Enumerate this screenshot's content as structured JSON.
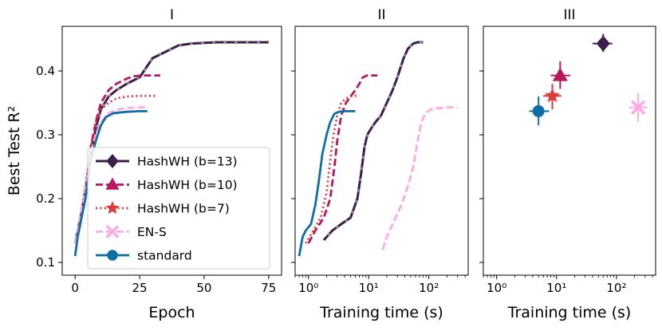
{
  "chart_data": [
    {
      "panel": "I",
      "type": "line",
      "title": "I",
      "xlabel": "Epoch",
      "ylabel": "Best Test R²",
      "xlim": [
        -5,
        80
      ],
      "ylim": [
        0.08,
        0.47
      ],
      "xscale": "linear",
      "xticks": [
        0,
        25,
        50,
        75
      ],
      "yticks": [
        0.1,
        0.2,
        0.3,
        0.4
      ],
      "legend_position": "lower-right",
      "series": [
        {
          "name": "HashWH (b=13)",
          "color": "#3b1f4a",
          "style": "dashdot",
          "x": [
            0,
            1,
            2,
            4,
            6,
            8,
            10,
            13,
            16,
            20,
            25,
            30,
            35,
            40,
            45,
            50,
            55,
            60,
            65,
            70,
            75
          ],
          "y": [
            0.13,
            0.15,
            0.17,
            0.21,
            0.27,
            0.31,
            0.34,
            0.36,
            0.37,
            0.38,
            0.39,
            0.42,
            0.43,
            0.44,
            0.443,
            0.444,
            0.445,
            0.445,
            0.445,
            0.445,
            0.445
          ]
        },
        {
          "name": "HashWH (b=10)",
          "color": "#b5185e",
          "style": "dashed",
          "x": [
            0,
            1,
            2,
            4,
            6,
            8,
            10,
            13,
            16,
            20,
            23,
            26,
            30,
            33
          ],
          "y": [
            0.13,
            0.15,
            0.17,
            0.21,
            0.28,
            0.32,
            0.35,
            0.37,
            0.38,
            0.388,
            0.392,
            0.393,
            0.393,
            0.393
          ]
        },
        {
          "name": "HashWH (b=7)",
          "color": "#e03b3b",
          "style": "dotted",
          "x": [
            0,
            1,
            2,
            4,
            6,
            8,
            10,
            13,
            16,
            20,
            25,
            31
          ],
          "y": [
            0.13,
            0.15,
            0.17,
            0.22,
            0.28,
            0.32,
            0.34,
            0.35,
            0.357,
            0.36,
            0.361,
            0.361
          ]
        },
        {
          "name": "EN-S",
          "color": "#ffa9e0",
          "style": "dashed",
          "x": [
            0,
            1,
            2,
            4,
            6,
            8,
            10,
            13,
            16,
            20,
            25,
            28
          ],
          "y": [
            0.13,
            0.15,
            0.17,
            0.21,
            0.27,
            0.3,
            0.32,
            0.334,
            0.339,
            0.342,
            0.343,
            0.343
          ]
        },
        {
          "name": "standard",
          "color": "#0b6fa6",
          "style": "solid",
          "x": [
            0,
            1,
            2,
            4,
            6,
            8,
            10,
            12,
            15,
            20,
            25,
            28
          ],
          "y": [
            0.11,
            0.14,
            0.16,
            0.2,
            0.26,
            0.29,
            0.315,
            0.328,
            0.334,
            0.336,
            0.337,
            0.337
          ]
        }
      ]
    },
    {
      "panel": "II",
      "type": "line",
      "title": "II",
      "xlabel": "Training time (s)",
      "xlim": [
        0.6,
        450
      ],
      "ylim": [
        0.08,
        0.47
      ],
      "xscale": "log",
      "xticks": [
        1,
        10,
        100
      ],
      "xtick_labels": [
        "10⁰",
        "10¹",
        "10²"
      ],
      "series": [
        {
          "name": "HashWH (b=13)",
          "color": "#3b1f4a",
          "style": "dashdot",
          "x": [
            1.8,
            2.5,
            3.5,
            5,
            6.5,
            7.5,
            8.5,
            9.5,
            11,
            13,
            16,
            20,
            25,
            30,
            38,
            45,
            55,
            65,
            80
          ],
          "y": [
            0.135,
            0.15,
            0.16,
            0.17,
            0.2,
            0.24,
            0.28,
            0.3,
            0.31,
            0.32,
            0.33,
            0.35,
            0.37,
            0.39,
            0.42,
            0.435,
            0.443,
            0.445,
            0.445
          ]
        },
        {
          "name": "HashWH (b=10)",
          "color": "#b5185e",
          "style": "dashed",
          "x": [
            1.0,
            1.3,
            1.8,
            2.3,
            2.7,
            3.0,
            3.5,
            4.2,
            5,
            6,
            7,
            8,
            9.5,
            11,
            14
          ],
          "y": [
            0.13,
            0.15,
            0.17,
            0.2,
            0.25,
            0.29,
            0.33,
            0.35,
            0.36,
            0.37,
            0.38,
            0.39,
            0.393,
            0.393,
            0.393
          ]
        },
        {
          "name": "HashWH (b=7)",
          "color": "#e03b3b",
          "style": "dotted",
          "x": [
            0.9,
            1.2,
            1.6,
            2.0,
            2.3,
            2.6,
            3.0,
            3.5,
            4.2,
            5,
            6,
            7
          ],
          "y": [
            0.13,
            0.15,
            0.17,
            0.21,
            0.26,
            0.3,
            0.33,
            0.35,
            0.357,
            0.36,
            0.361,
            0.361
          ]
        },
        {
          "name": "EN-S",
          "color": "#ffa9e0",
          "style": "dashed",
          "x": [
            17,
            20,
            25,
            35,
            45,
            55,
            65,
            75,
            90,
            110,
            150,
            200,
            300
          ],
          "y": [
            0.12,
            0.14,
            0.16,
            0.19,
            0.22,
            0.25,
            0.29,
            0.32,
            0.335,
            0.34,
            0.342,
            0.343,
            0.343
          ]
        },
        {
          "name": "standard",
          "color": "#0b6fa6",
          "style": "solid",
          "x": [
            0.7,
            0.8,
            0.9,
            1.1,
            1.3,
            1.5,
            1.7,
            2.0,
            2.3,
            2.7,
            3.2,
            4.0,
            6.0
          ],
          "y": [
            0.11,
            0.14,
            0.15,
            0.16,
            0.19,
            0.23,
            0.27,
            0.3,
            0.32,
            0.333,
            0.336,
            0.337,
            0.337
          ]
        }
      ]
    },
    {
      "panel": "III",
      "type": "scatter",
      "title": "III",
      "xlabel": "Training time (s)",
      "xlim": [
        0.6,
        450
      ],
      "ylim": [
        0.08,
        0.47
      ],
      "xscale": "log",
      "xticks": [
        1,
        10,
        100
      ],
      "xtick_labels": [
        "10⁰",
        "10¹",
        "10²"
      ],
      "points": [
        {
          "name": "HashWH (b=13)",
          "color": "#3b1f4a",
          "marker": "diamond",
          "x": 60,
          "y": 0.443,
          "xerr": [
            40,
            85
          ],
          "yerr": [
            0.43,
            0.458
          ]
        },
        {
          "name": "HashWH (b=10)",
          "color": "#b5185e",
          "marker": "triangle",
          "x": 11.5,
          "y": 0.393,
          "xerr": [
            8,
            17
          ],
          "yerr": [
            0.372,
            0.415
          ]
        },
        {
          "name": "HashWH (b=7)",
          "color": "#e03b3b",
          "marker": "star",
          "x": 8.5,
          "y": 0.361,
          "xerr": [
            6,
            12
          ],
          "yerr": [
            0.34,
            0.38
          ]
        },
        {
          "name": "EN-S",
          "color": "#ffa9e0",
          "marker": "x",
          "x": 230,
          "y": 0.343,
          "xerr": [
            160,
            330
          ],
          "yerr": [
            0.32,
            0.365
          ]
        },
        {
          "name": "standard",
          "color": "#0b6fa6",
          "marker": "circle",
          "x": 5.0,
          "y": 0.337,
          "xerr": [
            3.5,
            7.5
          ],
          "yerr": [
            0.315,
            0.36
          ]
        }
      ]
    }
  ]
}
